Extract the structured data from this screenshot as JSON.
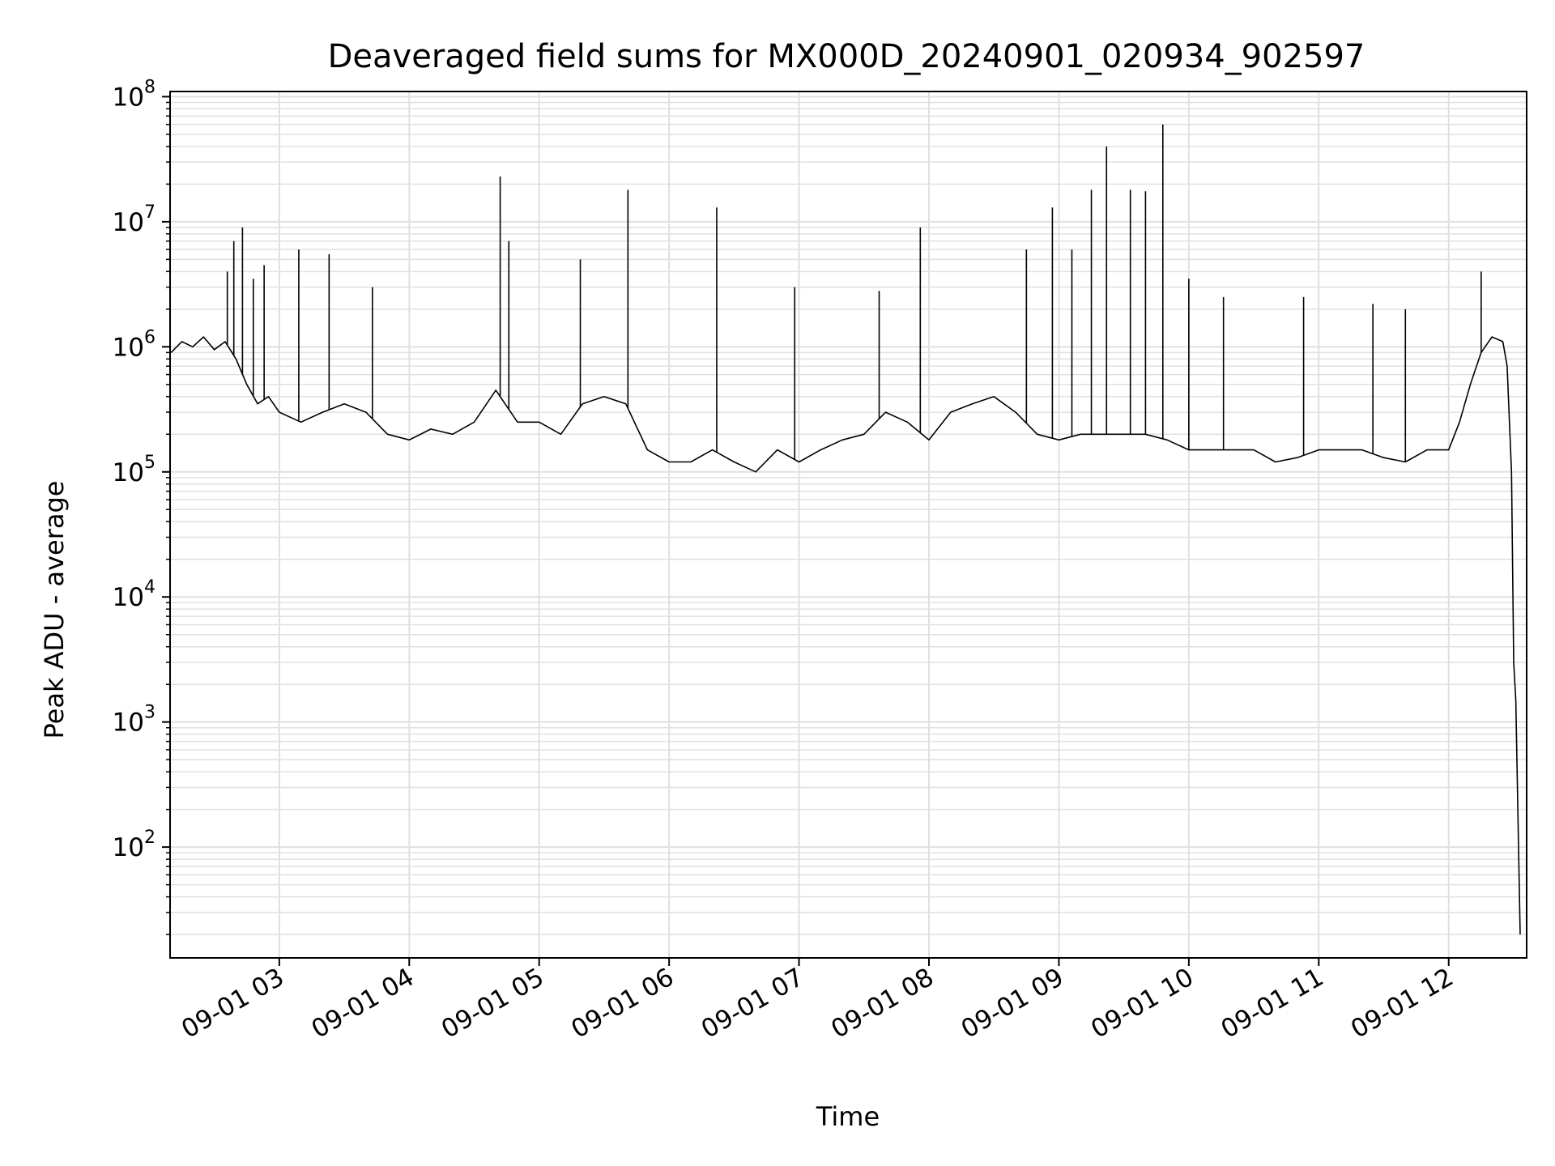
{
  "chart_data": {
    "type": "line",
    "title": "Deaveraged field sums for MX000D_20240901_020934_902597",
    "xlabel": "Time",
    "ylabel": "Peak ADU - average",
    "yscale": "log",
    "grid": true,
    "grid_minor": true,
    "line_color": "#000000",
    "grid_color": "#e0e0e0",
    "xlim": [
      "2024-09-01 02:09:34",
      "2024-09-01 12:36:00"
    ],
    "ylim": [
      13,
      110000000
    ],
    "x_ticks": [
      {
        "t": "2024-09-01 03:00",
        "label": "09-01 03"
      },
      {
        "t": "2024-09-01 04:00",
        "label": "09-01 04"
      },
      {
        "t": "2024-09-01 05:00",
        "label": "09-01 05"
      },
      {
        "t": "2024-09-01 06:00",
        "label": "09-01 06"
      },
      {
        "t": "2024-09-01 07:00",
        "label": "09-01 07"
      },
      {
        "t": "2024-09-01 08:00",
        "label": "09-01 08"
      },
      {
        "t": "2024-09-01 09:00",
        "label": "09-01 09"
      },
      {
        "t": "2024-09-01 10:00",
        "label": "09-01 10"
      },
      {
        "t": "2024-09-01 11:00",
        "label": "09-01 11"
      },
      {
        "t": "2024-09-01 12:00",
        "label": "09-01 12"
      }
    ],
    "y_ticks": [
      {
        "v": 100,
        "base": "10",
        "exp": "2"
      },
      {
        "v": 1000,
        "base": "10",
        "exp": "3"
      },
      {
        "v": 10000,
        "base": "10",
        "exp": "4"
      },
      {
        "v": 100000,
        "base": "10",
        "exp": "5"
      },
      {
        "v": 1000000,
        "base": "10",
        "exp": "6"
      },
      {
        "v": 10000000,
        "base": "10",
        "exp": "7"
      },
      {
        "v": 100000000,
        "base": "10",
        "exp": "8"
      }
    ],
    "series": [
      {
        "points": [
          [
            "2024-09-01 02:10",
            900000
          ],
          [
            "2024-09-01 02:15",
            1100000
          ],
          [
            "2024-09-01 02:20",
            1000000
          ],
          [
            "2024-09-01 02:25",
            1200000
          ],
          [
            "2024-09-01 02:30",
            950000
          ],
          [
            "2024-09-01 02:35",
            1100000
          ],
          [
            "2024-09-01 02:40",
            800000
          ],
          [
            "2024-09-01 02:45",
            500000
          ],
          [
            "2024-09-01 02:50",
            350000
          ],
          [
            "2024-09-01 02:55",
            400000
          ],
          [
            "2024-09-01 03:00",
            300000
          ],
          [
            "2024-09-01 03:10",
            250000
          ],
          [
            "2024-09-01 03:20",
            300000
          ],
          [
            "2024-09-01 03:30",
            350000
          ],
          [
            "2024-09-01 03:40",
            300000
          ],
          [
            "2024-09-01 03:50",
            200000
          ],
          [
            "2024-09-01 04:00",
            180000
          ],
          [
            "2024-09-01 04:10",
            220000
          ],
          [
            "2024-09-01 04:20",
            200000
          ],
          [
            "2024-09-01 04:30",
            250000
          ],
          [
            "2024-09-01 04:40",
            450000
          ],
          [
            "2024-09-01 04:50",
            250000
          ],
          [
            "2024-09-01 05:00",
            250000
          ],
          [
            "2024-09-01 05:10",
            200000
          ],
          [
            "2024-09-01 05:20",
            350000
          ],
          [
            "2024-09-01 05:30",
            400000
          ],
          [
            "2024-09-01 05:40",
            350000
          ],
          [
            "2024-09-01 05:50",
            150000
          ],
          [
            "2024-09-01 06:00",
            120000
          ],
          [
            "2024-09-01 06:10",
            120000
          ],
          [
            "2024-09-01 06:20",
            150000
          ],
          [
            "2024-09-01 06:30",
            120000
          ],
          [
            "2024-09-01 06:40",
            100000
          ],
          [
            "2024-09-01 06:50",
            150000
          ],
          [
            "2024-09-01 07:00",
            120000
          ],
          [
            "2024-09-01 07:10",
            150000
          ],
          [
            "2024-09-01 07:20",
            180000
          ],
          [
            "2024-09-01 07:30",
            200000
          ],
          [
            "2024-09-01 07:40",
            300000
          ],
          [
            "2024-09-01 07:50",
            250000
          ],
          [
            "2024-09-01 08:00",
            180000
          ],
          [
            "2024-09-01 08:10",
            300000
          ],
          [
            "2024-09-01 08:20",
            350000
          ],
          [
            "2024-09-01 08:30",
            400000
          ],
          [
            "2024-09-01 08:40",
            300000
          ],
          [
            "2024-09-01 08:50",
            200000
          ],
          [
            "2024-09-01 09:00",
            180000
          ],
          [
            "2024-09-01 09:10",
            200000
          ],
          [
            "2024-09-01 09:20",
            200000
          ],
          [
            "2024-09-01 09:30",
            200000
          ],
          [
            "2024-09-01 09:40",
            200000
          ],
          [
            "2024-09-01 09:50",
            180000
          ],
          [
            "2024-09-01 10:00",
            150000
          ],
          [
            "2024-09-01 10:10",
            150000
          ],
          [
            "2024-09-01 10:20",
            150000
          ],
          [
            "2024-09-01 10:30",
            150000
          ],
          [
            "2024-09-01 10:40",
            120000
          ],
          [
            "2024-09-01 10:50",
            130000
          ],
          [
            "2024-09-01 11:00",
            150000
          ],
          [
            "2024-09-01 11:10",
            150000
          ],
          [
            "2024-09-01 11:20",
            150000
          ],
          [
            "2024-09-01 11:30",
            130000
          ],
          [
            "2024-09-01 11:40",
            120000
          ],
          [
            "2024-09-01 11:50",
            150000
          ],
          [
            "2024-09-01 12:00",
            150000
          ],
          [
            "2024-09-01 12:05",
            250000
          ],
          [
            "2024-09-01 12:10",
            500000
          ],
          [
            "2024-09-01 12:15",
            900000
          ],
          [
            "2024-09-01 12:20",
            1200000
          ],
          [
            "2024-09-01 12:25",
            1100000
          ],
          [
            "2024-09-01 12:27",
            700000
          ],
          [
            "2024-09-01 12:29",
            100000
          ],
          [
            "2024-09-01 12:30",
            3000
          ],
          [
            "2024-09-01 12:31",
            1500
          ],
          [
            "2024-09-01 12:33",
            20
          ]
        ]
      }
    ],
    "spikes": [
      [
        "2024-09-01 02:36",
        4000000
      ],
      [
        "2024-09-01 02:39",
        7000000
      ],
      [
        "2024-09-01 02:43",
        9000000
      ],
      [
        "2024-09-01 02:48",
        3500000
      ],
      [
        "2024-09-01 02:53",
        4500000
      ],
      [
        "2024-09-01 03:09",
        6000000
      ],
      [
        "2024-09-01 03:23",
        5500000
      ],
      [
        "2024-09-01 03:43",
        3000000
      ],
      [
        "2024-09-01 04:42",
        23000000
      ],
      [
        "2024-09-01 04:46",
        7000000
      ],
      [
        "2024-09-01 05:19",
        5000000
      ],
      [
        "2024-09-01 05:41",
        18000000
      ],
      [
        "2024-09-01 06:22",
        13000000
      ],
      [
        "2024-09-01 06:58",
        3000000
      ],
      [
        "2024-09-01 07:37",
        2800000
      ],
      [
        "2024-09-01 07:56",
        9000000
      ],
      [
        "2024-09-01 08:45",
        6000000
      ],
      [
        "2024-09-01 08:57",
        13000000
      ],
      [
        "2024-09-01 09:06",
        6000000
      ],
      [
        "2024-09-01 09:15",
        18000000
      ],
      [
        "2024-09-01 09:22",
        40000000
      ],
      [
        "2024-09-01 09:33",
        18000000
      ],
      [
        "2024-09-01 09:40",
        17500000
      ],
      [
        "2024-09-01 09:48",
        60000000
      ],
      [
        "2024-09-01 10:00",
        3500000
      ],
      [
        "2024-09-01 10:16",
        2500000
      ],
      [
        "2024-09-01 10:53",
        2500000
      ],
      [
        "2024-09-01 11:25",
        2200000
      ],
      [
        "2024-09-01 11:40",
        2000000
      ],
      [
        "2024-09-01 12:15",
        4000000
      ]
    ]
  }
}
